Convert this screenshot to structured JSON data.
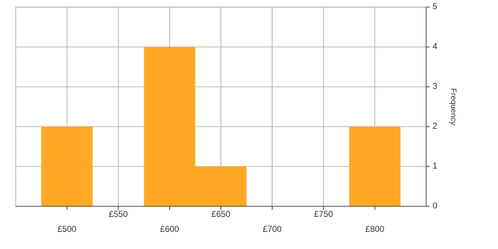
{
  "chart_data": {
    "type": "histogram",
    "bins": [
      475,
      525,
      575,
      625,
      675,
      725,
      775,
      825
    ],
    "values": [
      2,
      0,
      4,
      1,
      0,
      0,
      2
    ],
    "color": "#ffa31a",
    "xlim": [
      450,
      850
    ],
    "xticks": [
      {
        "value": 500,
        "label": "£500"
      },
      {
        "value": 550,
        "label": "£550"
      },
      {
        "value": 600,
        "label": "£600"
      },
      {
        "value": 650,
        "label": "£650"
      },
      {
        "value": 700,
        "label": "£700"
      },
      {
        "value": 750,
        "label": "£750"
      },
      {
        "value": 800,
        "label": "£800"
      }
    ],
    "ylim": [
      0,
      5
    ],
    "yticks": [
      0,
      1,
      2,
      3,
      4,
      5
    ],
    "y_label": "Frequency",
    "grid": true
  }
}
